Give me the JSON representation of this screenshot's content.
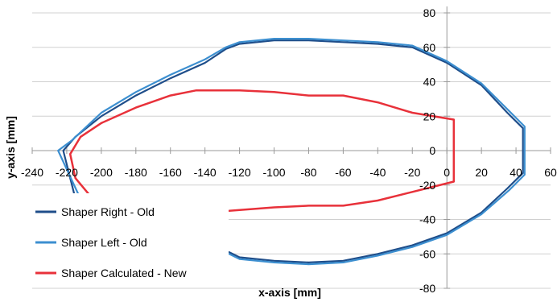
{
  "chart_data": {
    "type": "line",
    "title": "",
    "xlabel": "x-axis [mm]",
    "ylabel": "y-axis [mm]",
    "xlim": [
      -240,
      60
    ],
    "ylim": [
      -80,
      80
    ],
    "x_ticks": [
      -240,
      -220,
      -200,
      -180,
      -160,
      -140,
      -120,
      -100,
      -80,
      -60,
      -40,
      -20,
      0,
      20,
      40,
      60
    ],
    "y_ticks": [
      -80,
      -60,
      -40,
      -20,
      0,
      20,
      40,
      60,
      80
    ],
    "grid": "horizontal",
    "legend_position": "bottom-left",
    "series": [
      {
        "name": "Shaper Right - Old",
        "color": "#1f4e8a",
        "points": [
          [
            -215,
            -28
          ],
          [
            -222,
            0
          ],
          [
            -215,
            8
          ],
          [
            -200,
            20
          ],
          [
            -180,
            32
          ],
          [
            -160,
            42
          ],
          [
            -140,
            51
          ],
          [
            -128,
            59
          ],
          [
            -120,
            62
          ],
          [
            -100,
            64
          ],
          [
            -80,
            64
          ],
          [
            -60,
            63
          ],
          [
            -40,
            62
          ],
          [
            -20,
            60
          ],
          [
            0,
            51
          ],
          [
            20,
            38
          ],
          [
            35,
            22
          ],
          [
            44,
            13
          ],
          [
            44,
            -13
          ],
          [
            35,
            -22
          ],
          [
            20,
            -36
          ],
          [
            0,
            -48
          ],
          [
            -20,
            -55
          ],
          [
            -40,
            -60
          ],
          [
            -60,
            -64
          ],
          [
            -80,
            -65
          ],
          [
            -100,
            -64
          ],
          [
            -120,
            -62
          ],
          [
            -126,
            -59
          ]
        ]
      },
      {
        "name": "Shaper Left - Old",
        "color": "#3c8fd0",
        "points": [
          [
            -213,
            -26
          ],
          [
            -225,
            0
          ],
          [
            -217,
            6
          ],
          [
            -200,
            22
          ],
          [
            -180,
            34
          ],
          [
            -160,
            44
          ],
          [
            -140,
            53
          ],
          [
            -128,
            60
          ],
          [
            -120,
            63
          ],
          [
            -100,
            65
          ],
          [
            -80,
            65
          ],
          [
            -60,
            64
          ],
          [
            -40,
            63
          ],
          [
            -20,
            61
          ],
          [
            0,
            52
          ],
          [
            20,
            39
          ],
          [
            36,
            23
          ],
          [
            45,
            14
          ],
          [
            45,
            -14
          ],
          [
            36,
            -23
          ],
          [
            20,
            -37
          ],
          [
            0,
            -49
          ],
          [
            -20,
            -56
          ],
          [
            -40,
            -61
          ],
          [
            -60,
            -65
          ],
          [
            -80,
            -66
          ],
          [
            -100,
            -65
          ],
          [
            -120,
            -63
          ],
          [
            -126,
            -60
          ]
        ]
      },
      {
        "name": "Shaper Calculated - New",
        "color": "#e8313a",
        "points": [
          [
            -205,
            -28
          ],
          [
            -215,
            -16
          ],
          [
            -218,
            -2
          ],
          [
            -212,
            8
          ],
          [
            -200,
            16
          ],
          [
            -180,
            25
          ],
          [
            -160,
            32
          ],
          [
            -145,
            35
          ],
          [
            -120,
            35
          ],
          [
            -100,
            34
          ],
          [
            -80,
            32
          ],
          [
            -60,
            32
          ],
          [
            -40,
            28
          ],
          [
            -20,
            22
          ],
          [
            4,
            18
          ],
          [
            4,
            -18
          ],
          [
            -20,
            -24
          ],
          [
            -40,
            -29
          ],
          [
            -60,
            -32
          ],
          [
            -80,
            -32
          ],
          [
            -100,
            -33
          ],
          [
            -126,
            -35
          ]
        ]
      }
    ]
  }
}
